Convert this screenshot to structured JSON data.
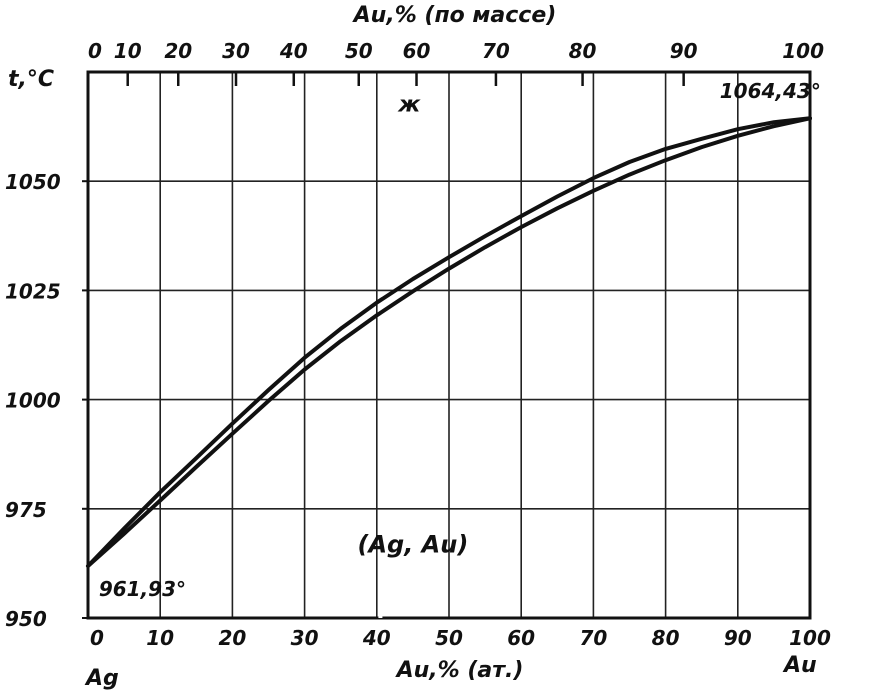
{
  "chart_data": {
    "type": "line",
    "title": "",
    "top_axis_label": "Au,% (по массе)",
    "xlabel": "Au,% (ат.)",
    "ylabel": "t,°C",
    "x_axis": {
      "min": 0,
      "max": 100,
      "ticks": [
        0,
        10,
        20,
        30,
        40,
        50,
        60,
        70,
        80,
        90,
        100
      ]
    },
    "y_axis": {
      "min": 950,
      "max": 1075,
      "ticks": [
        950,
        975,
        1000,
        1025,
        1050
      ]
    },
    "top_axis": {
      "ticks": [
        {
          "label": "0",
          "at_x": 0
        },
        {
          "label": "10",
          "at_x": 5.5
        },
        {
          "label": "20",
          "at_x": 12.5
        },
        {
          "label": "30",
          "at_x": 20.5
        },
        {
          "label": "40",
          "at_x": 28.5
        },
        {
          "label": "50",
          "at_x": 37.5
        },
        {
          "label": "60",
          "at_x": 45.5
        },
        {
          "label": "70",
          "at_x": 56.5
        },
        {
          "label": "80",
          "at_x": 68.5
        },
        {
          "label": "90",
          "at_x": 82.5
        },
        {
          "label": "100",
          "at_x": 100
        }
      ]
    },
    "grid": true,
    "series": [
      {
        "values_x": [
          0,
          5,
          10,
          15,
          20,
          25,
          30,
          35,
          40,
          45,
          50,
          55,
          60,
          65,
          70,
          75,
          80,
          85,
          90,
          95,
          100
        ],
        "values_y": [
          961.9,
          970.5,
          978.8,
          986.6,
          994.5,
          1002.2,
          1009.6,
          1016.2,
          1022.2,
          1027.6,
          1032.6,
          1037.4,
          1042.0,
          1046.5,
          1050.7,
          1054.4,
          1057.4,
          1059.7,
          1061.9,
          1063.5,
          1064.4
        ]
      },
      {
        "values_x": [
          0,
          5,
          10,
          15,
          20,
          25,
          30,
          35,
          40,
          45,
          50,
          55,
          60,
          65,
          70,
          75,
          80,
          85,
          90,
          95,
          100
        ],
        "values_y": [
          961.9,
          969.3,
          976.9,
          984.6,
          992.2,
          999.7,
          1006.9,
          1013.4,
          1019.3,
          1024.8,
          1030.0,
          1034.9,
          1039.5,
          1043.8,
          1047.8,
          1051.5,
          1054.8,
          1057.8,
          1060.4,
          1062.6,
          1064.4
        ]
      }
    ],
    "annotations": [
      {
        "text": "961,93°",
        "x": 1.5,
        "y": 955
      },
      {
        "text": "1064,43°",
        "x": 87.5,
        "y": 1069
      },
      {
        "text": "ж",
        "x": 44.5,
        "y": 1066
      },
      {
        "text": "(Ag, Au)",
        "x": 45,
        "y": 965
      }
    ],
    "endpoint_labels": {
      "left": "Ag",
      "right": "Au"
    }
  }
}
